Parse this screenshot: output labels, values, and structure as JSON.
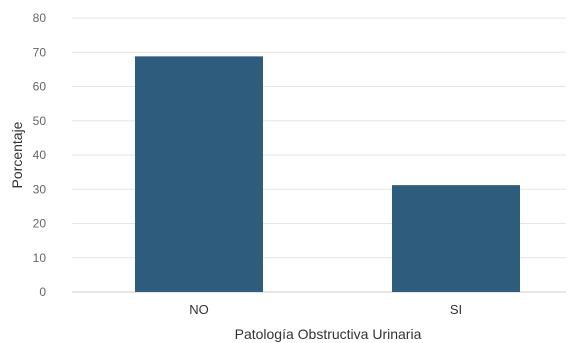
{
  "chart_data": {
    "type": "bar",
    "categories": [
      "NO",
      "SI"
    ],
    "values": [
      68.8,
      31.2
    ],
    "title": "",
    "xlabel": "Patología Obstructiva Urinaria",
    "ylabel": "Porcentaje",
    "ylim": [
      0,
      80
    ],
    "yticks": [
      0,
      10,
      20,
      30,
      40,
      50,
      60,
      70,
      80
    ],
    "grid": true,
    "bar_color": "#2e5c7d"
  }
}
